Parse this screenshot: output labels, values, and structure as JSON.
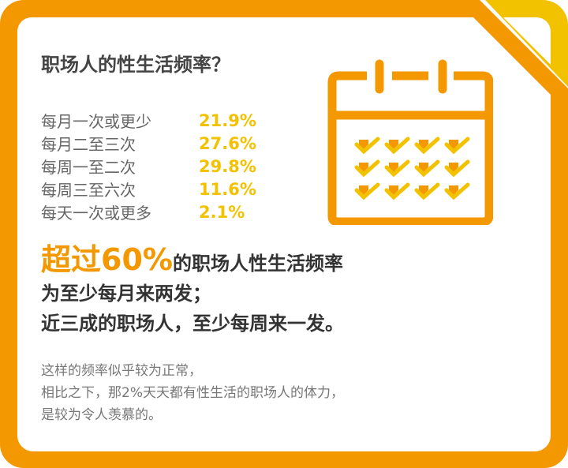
{
  "title": "职场人的性生活频率？",
  "stats": [
    {
      "label": "每月一次或更少",
      "value": "21.9%"
    },
    {
      "label": "每月二至三次",
      "value": "27.6%"
    },
    {
      "label": "每周一至二次",
      "value": "29.8%"
    },
    {
      "label": "每周三至六次",
      "value": "11.6%"
    },
    {
      "label": "每天一次或更多",
      "value": "2.1%"
    }
  ],
  "headline": {
    "highlight": "超过60%",
    "line1_rest": "的职场人性生活频率",
    "line2": "为至少每月来两发；",
    "line3": "近三成的职场人，至少每周来一发。"
  },
  "note": [
    "这样的频率似乎较为正常，",
    "相比之下，那2%天天都有性生活的职场人的体力，",
    "是较为令人羡慕的。"
  ],
  "colors": {
    "orange": "#f39800",
    "yellow": "#f2c200",
    "text": "#444444"
  },
  "icon": "calendar-check-icon"
}
